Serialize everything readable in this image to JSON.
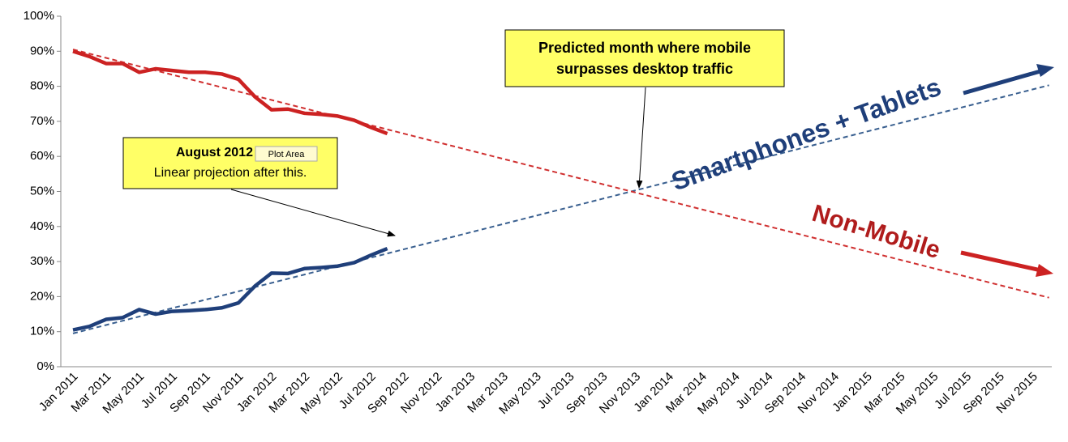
{
  "chart_data": {
    "type": "line",
    "categories": [
      "Jan 2011",
      null,
      "Mar 2011",
      null,
      "May 2011",
      null,
      "Jul 2011",
      null,
      "Sep 2011",
      null,
      "Nov 2011",
      null,
      "Jan 2012",
      null,
      "Mar 2012",
      null,
      "May 2012",
      null,
      "Jul 2012",
      null,
      "Sep 2012",
      null,
      "Nov 2012",
      null,
      "Jan 2013",
      null,
      "Mar 2013",
      null,
      "May 2013",
      null,
      "Jul 2013",
      null,
      "Sep 2013",
      null,
      "Nov 2013",
      null,
      "Jan 2014",
      null,
      "Mar 2014",
      null,
      "May 2014",
      null,
      "Jul 2014",
      null,
      "Sep 2014",
      null,
      "Nov 2014",
      null,
      "Jan 2015",
      null,
      "Mar 2015",
      null,
      "May 2015",
      null,
      "Jul 2015",
      null,
      "Sep 2015",
      null,
      "Nov 2015",
      null
    ],
    "series": [
      {
        "name": "Non-Mobile",
        "color": "#cc2222",
        "dashed": false,
        "values": [
          90,
          88.5,
          86.5,
          86.5,
          84,
          85,
          84.5,
          84,
          84,
          83.5,
          82,
          77,
          73.3,
          73.5,
          72.3,
          72,
          71.5,
          70.3,
          68.3,
          66.5,
          null,
          null,
          null,
          null,
          null,
          null,
          null,
          null,
          null,
          null,
          null,
          null,
          null,
          null,
          null,
          null,
          null,
          null,
          null,
          null,
          null,
          null,
          null,
          null,
          null,
          null,
          null,
          null,
          null,
          null,
          null,
          null,
          null,
          null,
          null,
          null,
          null,
          null,
          null,
          null
        ]
      },
      {
        "name": "Smartphones + Tablets",
        "color": "#1f3f7a",
        "dashed": false,
        "values": [
          10.5,
          11.5,
          13.5,
          14,
          16.3,
          15,
          15.8,
          16,
          16.3,
          16.8,
          18.2,
          23,
          26.7,
          26.6,
          28,
          28.3,
          28.7,
          29.7,
          31.8,
          33.7,
          null,
          null,
          null,
          null,
          null,
          null,
          null,
          null,
          null,
          null,
          null,
          null,
          null,
          null,
          null,
          null,
          null,
          null,
          null,
          null,
          null,
          null,
          null,
          null,
          null,
          null,
          null,
          null,
          null,
          null,
          null,
          null,
          null,
          null,
          null,
          null,
          null,
          null,
          null,
          null
        ]
      },
      {
        "color": "#d03030",
        "dashed": true,
        "values": [
          90.5,
          89.3,
          88.1,
          86.9,
          85.7,
          84.5,
          83.3,
          82.1,
          80.9,
          79.7,
          78.5,
          77.3,
          76.1,
          74.9,
          73.7,
          72.5,
          71.3,
          70.1,
          68.9,
          67.7,
          66.5,
          65.3,
          64.1,
          62.9,
          61.7,
          60.5,
          59.3,
          58.1,
          56.9,
          55.7,
          54.5,
          53.3,
          52.1,
          50.9,
          49.7,
          48.5,
          47.3,
          46.1,
          44.9,
          43.7,
          42.5,
          41.3,
          40.1,
          38.9,
          37.7,
          36.5,
          35.3,
          34.1,
          32.9,
          31.7,
          30.5,
          29.3,
          28.1,
          26.9,
          25.7,
          24.5,
          23.3,
          22.1,
          20.9,
          19.7
        ]
      },
      {
        "color": "#3a6090",
        "dashed": true,
        "values": [
          9.5,
          10.7,
          11.9,
          13.1,
          14.3,
          15.5,
          16.7,
          17.9,
          19.1,
          20.3,
          21.5,
          22.7,
          23.9,
          25.1,
          26.3,
          27.5,
          28.7,
          29.9,
          31.1,
          32.3,
          33.5,
          34.7,
          35.9,
          37.1,
          38.3,
          39.5,
          40.7,
          41.9,
          43.1,
          44.3,
          45.5,
          46.7,
          47.9,
          49.1,
          50.3,
          51.5,
          52.7,
          53.9,
          55.1,
          56.3,
          57.5,
          58.7,
          59.9,
          61.1,
          62.3,
          63.5,
          64.7,
          65.9,
          67.1,
          68.3,
          69.5,
          70.7,
          71.9,
          73.1,
          74.3,
          75.5,
          76.7,
          77.9,
          79.1,
          80.3
        ]
      }
    ],
    "ylim": [
      0,
      100
    ],
    "yticks": [
      {
        "value": 0,
        "label": "0%"
      },
      {
        "value": 10,
        "label": "10%"
      },
      {
        "value": 20,
        "label": "20%"
      },
      {
        "value": 30,
        "label": "30%"
      },
      {
        "value": 40,
        "label": "40%"
      },
      {
        "value": 50,
        "label": "50%"
      },
      {
        "value": 60,
        "label": "60%"
      },
      {
        "value": 70,
        "label": "70%"
      },
      {
        "value": 80,
        "label": "80%"
      },
      {
        "value": 90,
        "label": "90%"
      },
      {
        "value": 100,
        "label": "100%"
      }
    ],
    "grid": false,
    "annotations": [
      "August 2012",
      "Plot Area",
      "Linear projection after this.",
      "Predicted month where mobile",
      "surpasses desktop traffic"
    ]
  }
}
